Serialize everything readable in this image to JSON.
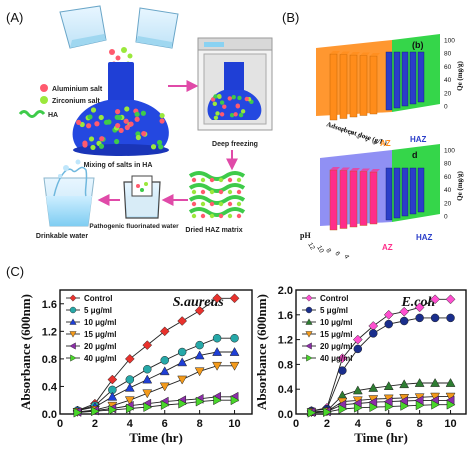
{
  "panels": {
    "a": {
      "label": "(A)",
      "captions": {
        "aluminium": "Aluminium salt",
        "zirconium": "Zirconium salt",
        "ha_legend": "HA",
        "mixing": "Mixing of salts in HA",
        "freezing": "Deep freezing",
        "drinkable": "Drinkable water",
        "pathogenic": "Pathogenic fluorinated water",
        "dried": "Dried HAZ matrix"
      },
      "colors": {
        "al": "#ff5a6e",
        "zr": "#9be83c",
        "ha": "#3ecb4a",
        "bowl": "#1f3fd6"
      }
    },
    "b": {
      "label": "(B)",
      "charts": [
        {
          "badge": "(b)",
          "zlabel": "Qe (mg/g)",
          "xlabel": "Adsorbent dose (g/L)",
          "xticks": [
            "1",
            "2",
            "3",
            "4",
            "5"
          ],
          "zticks": [
            "0",
            "20",
            "40",
            "60",
            "80",
            "100"
          ],
          "series_labels": [
            "AZ",
            "HAZ"
          ],
          "colors": {
            "wall": "#35d64a",
            "az": "#ff8c1a",
            "haz": "#2b3ec9"
          }
        },
        {
          "badge": "d",
          "zlabel": "Qe (mg/g)",
          "xlabel": "pH",
          "xticks": [
            "12",
            "10",
            "8",
            "6",
            "4"
          ],
          "zticks": [
            "0",
            "20",
            "40",
            "60",
            "80",
            "100"
          ],
          "series_labels": [
            "AZ",
            "HAZ"
          ],
          "colors": {
            "wall": "#35d64a",
            "az": "#ff2d8a",
            "haz": "#2b3ec9"
          }
        }
      ]
    },
    "c": {
      "label": "(C)"
    }
  },
  "chart_data": [
    {
      "type": "line",
      "title": "S.aureus",
      "xlabel": "Time (hr)",
      "ylabel": "Absorbance (600nm)",
      "xlim": [
        0,
        11
      ],
      "ylim": [
        0,
        1.8
      ],
      "xticks": [
        "0",
        "2",
        "4",
        "6",
        "8",
        "10"
      ],
      "yticks": [
        "0.0",
        "0.4",
        "0.8",
        "1.2",
        "1.6"
      ],
      "legend": "top-left",
      "series": [
        {
          "name": "Control",
          "marker": "diamond",
          "color": "#e8322d",
          "x": [
            1,
            2,
            3,
            4,
            5,
            6,
            7,
            8,
            9,
            10
          ],
          "y": [
            0.05,
            0.15,
            0.5,
            0.8,
            1.0,
            1.2,
            1.35,
            1.5,
            1.68,
            1.68
          ]
        },
        {
          "name": "5 μg/ml",
          "marker": "circle",
          "color": "#26a8a8",
          "x": [
            1,
            2,
            3,
            4,
            5,
            6,
            7,
            8,
            9,
            10
          ],
          "y": [
            0.05,
            0.12,
            0.35,
            0.5,
            0.65,
            0.78,
            0.9,
            1.0,
            1.1,
            1.1
          ]
        },
        {
          "name": "10 μg/ml",
          "marker": "triangle-up",
          "color": "#1f3fd6",
          "x": [
            1,
            2,
            3,
            4,
            5,
            6,
            7,
            8,
            9,
            10
          ],
          "y": [
            0.05,
            0.1,
            0.25,
            0.38,
            0.5,
            0.62,
            0.75,
            0.85,
            0.9,
            0.9
          ]
        },
        {
          "name": "15 μg/ml",
          "marker": "triangle-down",
          "color": "#f39a1b",
          "x": [
            1,
            2,
            3,
            4,
            5,
            6,
            7,
            8,
            9,
            10
          ],
          "y": [
            0.03,
            0.06,
            0.12,
            0.2,
            0.3,
            0.4,
            0.5,
            0.62,
            0.7,
            0.7
          ]
        },
        {
          "name": "20 μg/ml",
          "marker": "triangle-left",
          "color": "#8c2ea8",
          "x": [
            1,
            2,
            3,
            4,
            5,
            6,
            7,
            8,
            9,
            10
          ],
          "y": [
            0.03,
            0.05,
            0.08,
            0.12,
            0.15,
            0.18,
            0.2,
            0.22,
            0.25,
            0.25
          ]
        },
        {
          "name": "40 μg/ml",
          "marker": "triangle-right",
          "color": "#49d62a",
          "x": [
            1,
            2,
            3,
            4,
            5,
            6,
            7,
            8,
            9,
            10
          ],
          "y": [
            0.02,
            0.04,
            0.06,
            0.08,
            0.1,
            0.13,
            0.15,
            0.18,
            0.2,
            0.2
          ]
        }
      ]
    },
    {
      "type": "line",
      "title": "E.coli",
      "xlabel": "Time (hr)",
      "ylabel": "Absorbance (600nm)",
      "xlim": [
        0,
        11
      ],
      "ylim": [
        0,
        2.0
      ],
      "xticks": [
        "0",
        "2",
        "4",
        "6",
        "8",
        "10"
      ],
      "yticks": [
        "0.0",
        "0.4",
        "0.8",
        "1.2",
        "1.6",
        "2.0"
      ],
      "legend": "top-left",
      "series": [
        {
          "name": "Control",
          "marker": "diamond",
          "color": "#ff4fd0",
          "x": [
            1,
            2,
            3,
            4,
            5,
            6,
            7,
            8,
            9,
            10
          ],
          "y": [
            0.05,
            0.1,
            0.9,
            1.2,
            1.42,
            1.6,
            1.65,
            1.72,
            1.85,
            1.85
          ]
        },
        {
          "name": "5 μg/ml",
          "marker": "circle",
          "color": "#1a2e8c",
          "x": [
            1,
            2,
            3,
            4,
            5,
            6,
            7,
            8,
            9,
            10
          ],
          "y": [
            0.05,
            0.08,
            0.7,
            1.05,
            1.3,
            1.45,
            1.5,
            1.55,
            1.55,
            1.55
          ]
        },
        {
          "name": "10 μg/ml",
          "marker": "triangle-up",
          "color": "#2e7d32",
          "x": [
            1,
            2,
            3,
            4,
            5,
            6,
            7,
            8,
            9,
            10
          ],
          "y": [
            0.03,
            0.05,
            0.3,
            0.38,
            0.42,
            0.45,
            0.48,
            0.5,
            0.5,
            0.5
          ]
        },
        {
          "name": "15 μg/ml",
          "marker": "triangle-down",
          "color": "#f39a1b",
          "x": [
            1,
            2,
            3,
            4,
            5,
            6,
            7,
            8,
            9,
            10
          ],
          "y": [
            0.03,
            0.04,
            0.2,
            0.22,
            0.24,
            0.25,
            0.26,
            0.27,
            0.28,
            0.28
          ]
        },
        {
          "name": "20 μg/ml",
          "marker": "triangle-left",
          "color": "#8c2ea8",
          "x": [
            1,
            2,
            3,
            4,
            5,
            6,
            7,
            8,
            9,
            10
          ],
          "y": [
            0.03,
            0.04,
            0.15,
            0.17,
            0.19,
            0.2,
            0.21,
            0.22,
            0.22,
            0.22
          ]
        },
        {
          "name": "40 μg/ml",
          "marker": "triangle-right",
          "color": "#49d62a",
          "x": [
            1,
            2,
            3,
            4,
            5,
            6,
            7,
            8,
            9,
            10
          ],
          "y": [
            0.02,
            0.03,
            0.08,
            0.1,
            0.11,
            0.12,
            0.13,
            0.14,
            0.15,
            0.15
          ]
        }
      ]
    }
  ]
}
